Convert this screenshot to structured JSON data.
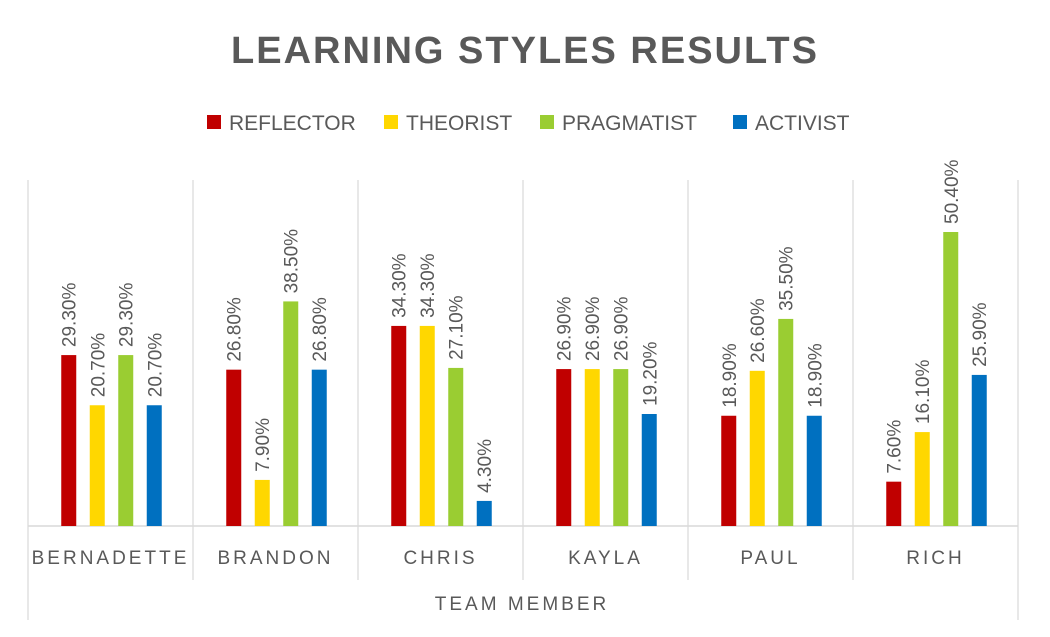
{
  "chart_data": {
    "type": "bar",
    "title": "LEARNING STYLES RESULTS",
    "xlabel": "TEAM MEMBER",
    "ylabel": "",
    "ylim": [
      0,
      60
    ],
    "grid": false,
    "legend_position": "top",
    "categories": [
      "BERNADETTE",
      "BRANDON",
      "CHRIS",
      "KAYLA",
      "PAUL",
      "RICH"
    ],
    "series": [
      {
        "name": "REFLECTOR",
        "color": "#C00000",
        "values": [
          29.3,
          26.8,
          34.3,
          26.9,
          18.9,
          7.6
        ],
        "labels": [
          "29.30%",
          "26.80%",
          "34.30%",
          "26.90%",
          "18.90%",
          "7.60%"
        ]
      },
      {
        "name": "THEORIST",
        "color": "#FFD700",
        "values": [
          20.7,
          7.9,
          34.3,
          26.9,
          26.6,
          16.1
        ],
        "labels": [
          "20.70%",
          "7.90%",
          "34.30%",
          "26.90%",
          "26.60%",
          "16.10%"
        ]
      },
      {
        "name": "PRAGMATIST",
        "color": "#9ACD32",
        "values": [
          29.3,
          38.5,
          27.1,
          26.9,
          35.5,
          50.4
        ],
        "labels": [
          "29.30%",
          "38.50%",
          "27.10%",
          "26.90%",
          "35.50%",
          "50.40%"
        ]
      },
      {
        "name": "ACTIVIST",
        "color": "#0070C0",
        "values": [
          20.7,
          26.8,
          4.3,
          19.2,
          18.9,
          25.9
        ],
        "labels": [
          "20.70%",
          "26.80%",
          "4.30%",
          "19.20%",
          "18.90%",
          "25.90%"
        ]
      }
    ]
  }
}
